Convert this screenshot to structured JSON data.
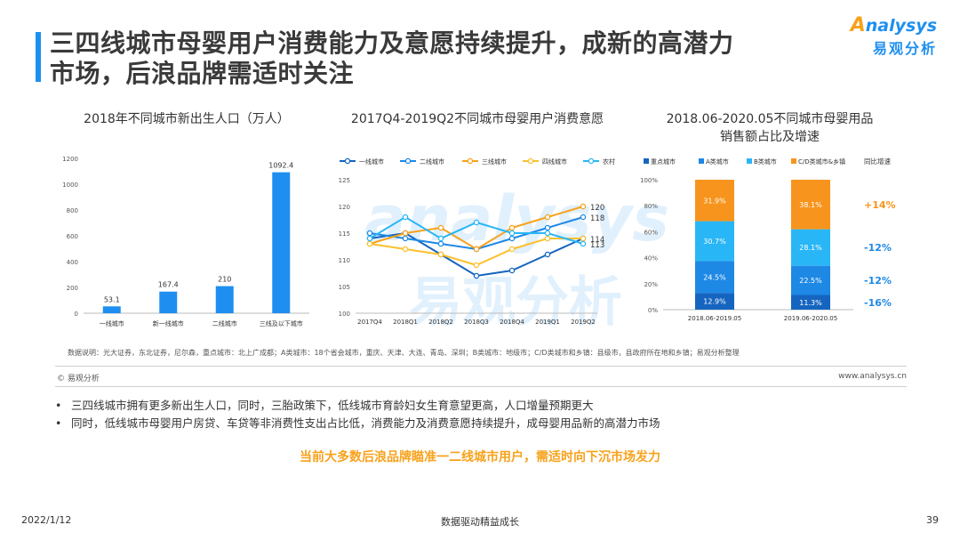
{
  "header": {
    "title_line1": "三四线城市母婴用户消费能力及意愿持续提升，成新的高潜力",
    "title_line2": "市场，后浪品牌需适时关注",
    "logo_en_first": "A",
    "logo_en_rest": "nalysys",
    "logo_zh": "易观分析"
  },
  "watermark": {
    "en": "analysys",
    "zh": "易观分析"
  },
  "chart_data": [
    {
      "type": "bar",
      "title": "2018年不同城市新出生人口（万人）",
      "categories": [
        "一线城市",
        "新一线城市",
        "二线城市",
        "三线及以下城市"
      ],
      "values": [
        53.1,
        167.4,
        210,
        1092.4
      ],
      "value_labels": [
        "53.1",
        "167.4",
        "210",
        "1092.4"
      ],
      "ylim": [
        0,
        1200
      ],
      "yticks": [
        0,
        200,
        400,
        600,
        800,
        1000,
        1200
      ],
      "color": "#1e8ff0"
    },
    {
      "type": "line",
      "title": "2017Q4-2019Q2不同城市母婴用户消费意愿",
      "categories": [
        "2017Q4",
        "2018Q1",
        "2018Q2",
        "2018Q3",
        "2018Q4",
        "2019Q1",
        "2019Q2"
      ],
      "ylim": [
        100,
        125
      ],
      "yticks": [
        100,
        105,
        110,
        115,
        120,
        125
      ],
      "series": [
        {
          "name": "一线城市",
          "color": "#1565c0",
          "values": [
            114,
            115,
            111,
            107,
            108,
            111,
            114
          ]
        },
        {
          "name": "二线城市",
          "color": "#1e88e5",
          "values": [
            115,
            114,
            113,
            112,
            114,
            116,
            118
          ]
        },
        {
          "name": "三线城市",
          "color": "#f7a21b",
          "values": [
            113,
            115,
            116,
            112,
            116,
            118,
            120
          ]
        },
        {
          "name": "四线城市",
          "color": "#fbc02d",
          "values": [
            113,
            112,
            111,
            109,
            112,
            114,
            114
          ]
        },
        {
          "name": "农村",
          "color": "#29b6f6",
          "values": [
            114,
            118,
            114,
            117,
            115,
            115,
            113
          ]
        }
      ],
      "end_labels": [
        "120",
        "118",
        "114",
        "113"
      ]
    },
    {
      "type": "bar",
      "stacked": true,
      "title_line1": "2018.06-2020.05不同城市母婴用品",
      "title_line2": "销售额占比及增速",
      "categories": [
        "2018.06-2019.05",
        "2019.06-2020.05"
      ],
      "ylim": [
        0,
        100
      ],
      "ytick_labels": [
        "0%",
        "20%",
        "40%",
        "60%",
        "80%",
        "100%"
      ],
      "growth_header": "同比增速",
      "series": [
        {
          "name": "重点城市",
          "color": "#1565c0",
          "values": [
            12.9,
            11.3
          ],
          "labels": [
            "12.9%",
            "11.3%"
          ],
          "growth": "-16%"
        },
        {
          "name": "A类城市",
          "color": "#1e88e5",
          "values": [
            24.5,
            22.5
          ],
          "labels": [
            "24.5%",
            "22.5%"
          ],
          "growth": "-12%"
        },
        {
          "name": "B类城市",
          "color": "#29b6f6",
          "values": [
            30.7,
            28.1
          ],
          "labels": [
            "30.7%",
            "28.1%"
          ],
          "growth": "-12%"
        },
        {
          "name": "C/D类城市&乡镇",
          "color": "#f7941d",
          "values": [
            31.9,
            38.1
          ],
          "labels": [
            "31.9%",
            "38.1%"
          ],
          "growth": "+14%"
        }
      ]
    }
  ],
  "note": "数据说明：光大证券，东北证券，尼尔森，重点城市：北上广成都；A类城市：18个省会城市，重庆、天津、大连、青岛、深圳；B类城市：地级市；C/D类城市和乡镇：县级市，县政府所在地和乡镇；易观分析整理",
  "copyright": "© 易观分析",
  "website": "www.analysys.cn",
  "bullets": [
    "三四线城市拥有更多新出生人口，同时，三胎政策下，低线城市育龄妇女生育意望更高，人口增量预期更大",
    "同时，低线城市母婴用户房贷、车贷等非消费性支出占比低，消费能力及消费意愿持续提升，成母婴用品新的高潜力市场"
  ],
  "bullet_symbol": "•",
  "highlight": "当前大多数后浪品牌瞄准一二线城市用户，需适时向下沉市场发力",
  "footer": {
    "date": "2022/1/12",
    "slogan": "数据驱动精益成长",
    "page": "39"
  },
  "colors": {
    "accent": "#1e8ff0",
    "orange": "#f7a21b"
  }
}
